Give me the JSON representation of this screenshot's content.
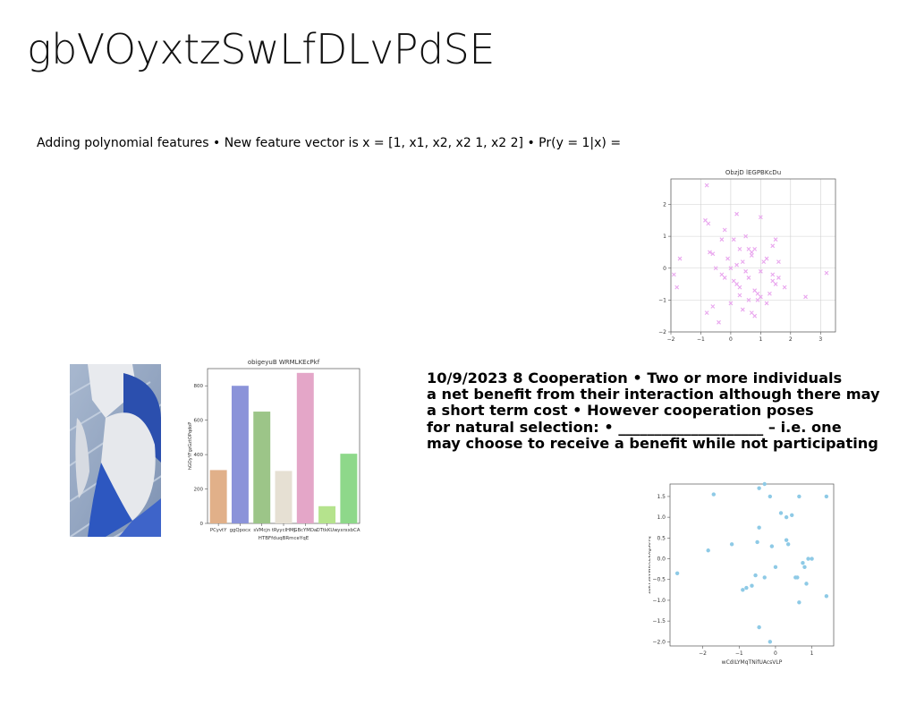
{
  "slide": {
    "title": "gbVOyxtzSwLfDLvPdSE",
    "subtitle": "Adding polynomial features • New feature vector is x = [1, x1, x2, x2 1, x2 2] • Pr(y = 1|x) =",
    "body_lines": [
      "10/9/2023 8 Cooperation • Two or more individuals",
      "a net benefit from their interaction although there may",
      "a short term cost • However cooperation poses",
      "for natural selection: • ____________________ – i.e. one",
      "may choose to receive a benefit while not participating"
    ]
  },
  "colors": {
    "scatter1": "#e9a6ee",
    "scatter2": "#8ecae6",
    "grid": "#d0d0d0"
  },
  "chart_data": [
    {
      "type": "scatter",
      "title": "ObzjD lEGPBKcDu",
      "xlabel": "",
      "ylabel": "",
      "xlim": [
        -2,
        3.5
      ],
      "ylim": [
        -2,
        2.8
      ],
      "xticks": [
        -2,
        -1,
        0,
        1,
        2,
        3
      ],
      "yticks": [
        -2,
        -1,
        0,
        1,
        2
      ],
      "grid": true,
      "marker": "x",
      "color": "#e9a6ee",
      "x": [
        -0.8,
        -0.85,
        -0.75,
        -0.2,
        0.2,
        0.5,
        0.1,
        0.3,
        0.6,
        0.7,
        1.0,
        1.5,
        1.4,
        -1.7,
        -1.9,
        -1.8,
        -0.7,
        -0.6,
        -0.5,
        -0.3,
        -0.2,
        -0.1,
        0.0,
        0.1,
        0.2,
        0.3,
        0.4,
        0.5,
        0.6,
        0.7,
        0.8,
        0.9,
        1.0,
        1.1,
        1.2,
        1.3,
        1.4,
        1.5,
        1.6,
        1.8,
        2.5,
        3.2,
        -0.8,
        -0.6,
        -0.4,
        0.0,
        0.4,
        0.6,
        0.8,
        1.0,
        1.2,
        0.3,
        0.7,
        1.6,
        0.9,
        0.2,
        -0.3,
        1.4,
        0.8
      ],
      "y": [
        2.6,
        1.5,
        1.4,
        1.2,
        1.7,
        1.0,
        0.9,
        0.6,
        0.6,
        0.5,
        1.6,
        0.9,
        0.7,
        0.3,
        -0.2,
        -0.6,
        0.5,
        0.45,
        0.0,
        -0.2,
        -0.3,
        0.3,
        0.0,
        -0.4,
        -0.5,
        -0.6,
        0.2,
        -0.1,
        -0.3,
        0.4,
        -0.7,
        -0.8,
        -0.1,
        0.2,
        0.3,
        -0.8,
        -0.4,
        -0.5,
        0.2,
        -0.6,
        -0.9,
        -0.15,
        -1.4,
        -1.2,
        -1.7,
        -1.1,
        -1.3,
        -1.0,
        -1.5,
        -0.9,
        -1.1,
        -0.85,
        -1.4,
        -0.3,
        -1.0,
        0.1,
        0.9,
        -0.2,
        0.6
      ]
    },
    {
      "type": "bar",
      "title": "obigeyuB WRMLKEcPkf",
      "xlabel": "HTBFfduqBRmceYqE",
      "ylabel": "hGOyYFgzGztOPqdoP",
      "ylim": [
        0,
        900
      ],
      "yticks": [
        0,
        200,
        400,
        600,
        800
      ],
      "categories": [
        "PCyvtY",
        "ggQpocx",
        "sVMcjn",
        "tRyycIHMJ",
        "GBcYMDa",
        "DTtkKUw",
        "yxrxxbCA"
      ],
      "values": [
        310,
        800,
        650,
        305,
        875,
        100,
        405
      ],
      "bar_colors": [
        "#e1b089",
        "#8b93d9",
        "#9cc588",
        "#e6e0d3",
        "#e4a6c8",
        "#b5e38d",
        "#8ed88a"
      ]
    },
    {
      "type": "scatter",
      "title": "",
      "xlabel": "wCdILYMqTNifUAcsVLP",
      "ylabel": "zbkYSsVWkfcEkXgSoYq",
      "xlim": [
        -2.9,
        1.6
      ],
      "ylim": [
        -2.1,
        1.8
      ],
      "xticks": [
        -2,
        -1,
        0,
        1
      ],
      "yticks": [
        -2.0,
        -1.5,
        -1.0,
        -0.5,
        0.0,
        0.5,
        1.0,
        1.5
      ],
      "grid": false,
      "marker": "o",
      "color": "#8ecae6",
      "x": [
        -1.7,
        -0.45,
        -0.3,
        -0.15,
        1.4,
        0.65,
        0.15,
        0.3,
        0.45,
        -0.45,
        -1.2,
        -1.85,
        -0.1,
        0.3,
        0.35,
        0.8,
        0.9,
        1.0,
        -0.55,
        -0.65,
        -0.8,
        -0.9,
        -0.3,
        0.0,
        0.55,
        0.75,
        -2.7,
        0.6,
        0.65,
        0.85,
        1.4,
        -0.45,
        -0.15,
        -0.5
      ],
      "y": [
        1.55,
        1.7,
        1.8,
        1.5,
        1.5,
        1.5,
        1.1,
        1.0,
        1.05,
        0.75,
        0.35,
        0.2,
        0.3,
        0.45,
        0.35,
        -0.2,
        0.0,
        0.0,
        -0.4,
        -0.65,
        -0.7,
        -0.75,
        -0.45,
        -0.2,
        -0.45,
        -0.1,
        -0.35,
        -0.45,
        -1.05,
        -0.6,
        -0.9,
        -1.65,
        -2.0,
        0.4
      ]
    }
  ]
}
